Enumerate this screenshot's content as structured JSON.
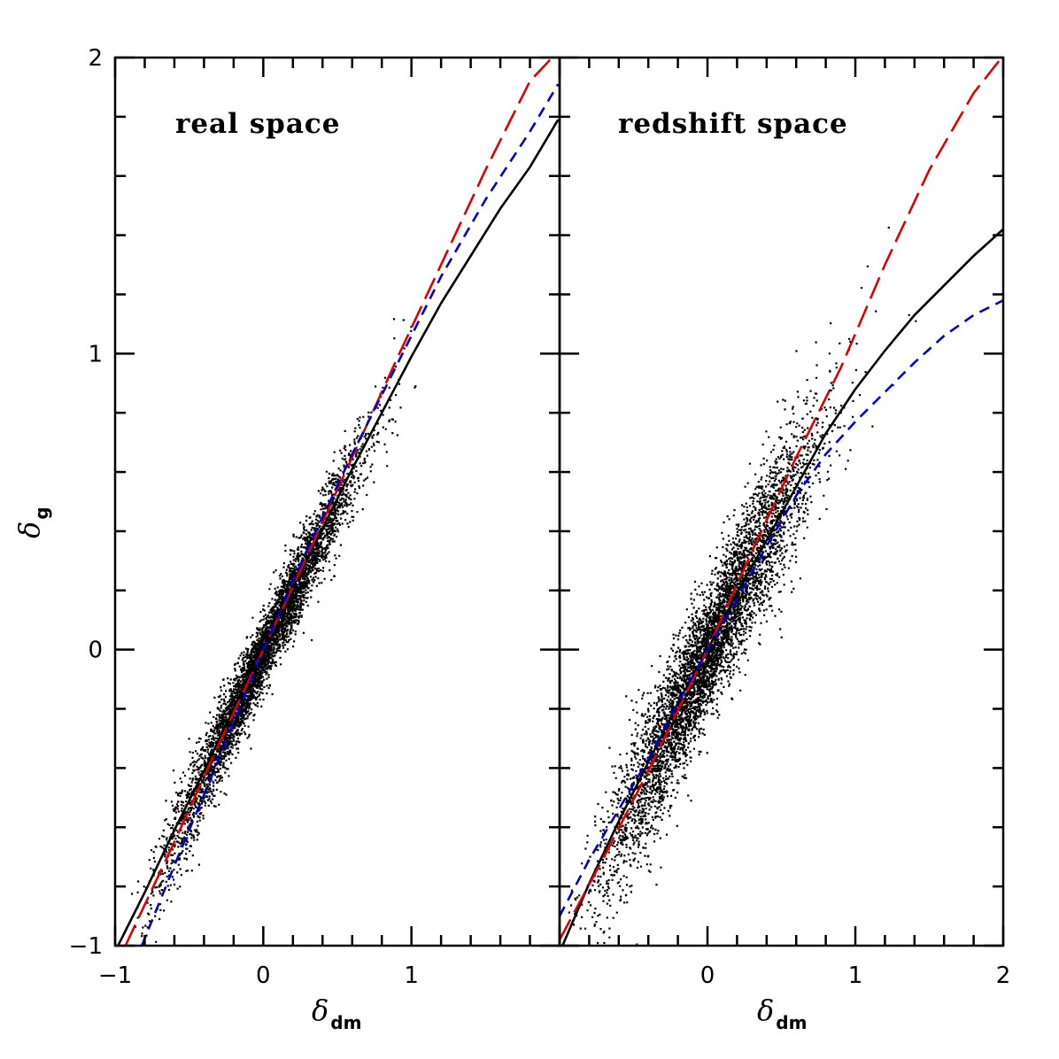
{
  "colors": {
    "background": "#ffffff",
    "frame": "#000000",
    "points": "#000000",
    "fit_solid": "#000000",
    "fit_long_dash": "#dd0000",
    "fit_short_dash": "#0000cc"
  },
  "axes": {
    "xlabel_main": "δ",
    "xlabel_sub": "dm",
    "ylabel_main": "δ",
    "ylabel_sub": "g"
  },
  "chart_data": [
    {
      "type": "scatter",
      "panel_label": "real space",
      "xlim": [
        -1,
        2
      ],
      "ylim": [
        -1,
        2
      ],
      "x_tick_labels": [
        "−1",
        "0",
        "1"
      ],
      "x_tick_values": [
        -1,
        0,
        1
      ],
      "y_tick_labels": [
        "−1",
        "0",
        "1",
        "2"
      ],
      "y_tick_values": [
        -1,
        0,
        1,
        2
      ],
      "grid": false,
      "scatter_model": {
        "slope": 1.03,
        "curvature": -0.04,
        "n": 5000,
        "x_center": 0.0,
        "x_spread": 0.32,
        "noise": 0.055,
        "noise_scale": 0.045
      },
      "series": [
        {
          "style": "solid",
          "color": "#000000",
          "x": [
            -0.98,
            -0.8,
            -0.6,
            -0.4,
            -0.2,
            0.0,
            0.2,
            0.4,
            0.6,
            0.8,
            1.0,
            1.2,
            1.4,
            1.6,
            1.8,
            1.99
          ],
          "y": [
            -1.0,
            -0.82,
            -0.61,
            -0.41,
            -0.2,
            0.0,
            0.21,
            0.41,
            0.61,
            0.8,
            0.99,
            1.17,
            1.33,
            1.49,
            1.63,
            1.79
          ]
        },
        {
          "style": "long-dash",
          "color": "#dd0000",
          "x": [
            -0.93,
            -0.6,
            -0.3,
            0.0,
            0.3,
            0.6,
            0.9,
            1.2,
            1.5,
            1.8,
            1.95
          ],
          "y": [
            -1.0,
            -0.65,
            -0.32,
            0.0,
            0.32,
            0.65,
            0.98,
            1.3,
            1.62,
            1.92,
            2.0
          ]
        },
        {
          "style": "short-dash",
          "color": "#0000cc",
          "x": [
            -0.82,
            -0.6,
            -0.3,
            0.0,
            0.3,
            0.6,
            0.9,
            1.2,
            1.5,
            1.8,
            1.99
          ],
          "y": [
            -1.0,
            -0.73,
            -0.37,
            0.0,
            0.34,
            0.66,
            0.96,
            1.26,
            1.52,
            1.75,
            1.91
          ]
        }
      ]
    },
    {
      "type": "scatter",
      "panel_label": "redshift space",
      "xlim": [
        -1,
        2
      ],
      "ylim": [
        -1,
        2
      ],
      "x_tick_labels": [
        "0",
        "1",
        "2"
      ],
      "x_tick_values": [
        0,
        1,
        2
      ],
      "y_tick_labels": [],
      "y_tick_values": [],
      "grid": false,
      "scatter_model": {
        "slope": 1.0,
        "curvature": -0.06,
        "n": 5500,
        "x_center": 0.0,
        "x_spread": 0.36,
        "noise": 0.1,
        "noise_scale": 0.06
      },
      "series": [
        {
          "style": "solid",
          "color": "#000000",
          "x": [
            -0.98,
            -0.8,
            -0.6,
            -0.4,
            -0.2,
            0.0,
            0.2,
            0.4,
            0.6,
            0.8,
            1.0,
            1.2,
            1.4,
            1.6,
            1.8,
            2.0
          ],
          "y": [
            -1.0,
            -0.79,
            -0.58,
            -0.38,
            -0.18,
            0.0,
            0.19,
            0.37,
            0.55,
            0.73,
            0.88,
            1.01,
            1.13,
            1.23,
            1.33,
            1.42
          ]
        },
        {
          "style": "long-dash",
          "color": "#dd0000",
          "x": [
            -1.0,
            -0.7,
            -0.4,
            0.0,
            0.3,
            0.6,
            0.9,
            1.2,
            1.5,
            1.8,
            1.99
          ],
          "y": [
            -0.98,
            -0.7,
            -0.41,
            0.0,
            0.33,
            0.65,
            0.95,
            1.3,
            1.62,
            1.88,
            2.0
          ]
        },
        {
          "style": "short-dash",
          "color": "#0000cc",
          "x": [
            -1.0,
            -0.8,
            -0.6,
            -0.4,
            -0.2,
            0.0,
            0.2,
            0.4,
            0.6,
            0.8,
            1.0,
            1.2,
            1.4,
            1.6,
            1.8,
            2.0
          ],
          "y": [
            -0.9,
            -0.71,
            -0.54,
            -0.37,
            -0.18,
            0.0,
            0.17,
            0.35,
            0.52,
            0.66,
            0.77,
            0.87,
            0.97,
            1.06,
            1.13,
            1.18
          ]
        }
      ]
    }
  ]
}
